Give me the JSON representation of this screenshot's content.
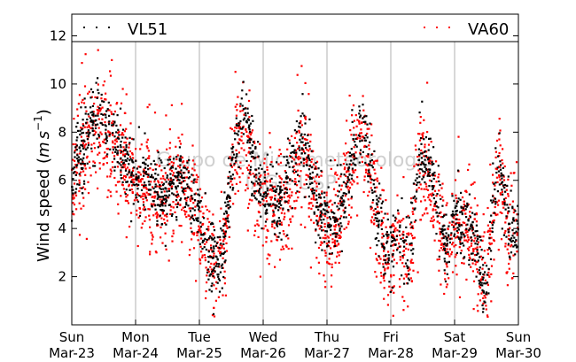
{
  "chart_data": {
    "type": "scatter",
    "title": "",
    "xlabel": "",
    "ylabel": "Wind speed (m s⁻¹)",
    "ylabel_main": "Wind speed (",
    "ylabel_unit_m": "m",
    "ylabel_unit_s": "s",
    "ylabel_unit_exp": "−1",
    "ylabel_close": ")",
    "ylim": [
      0,
      12.9
    ],
    "xlim": [
      0,
      7
    ],
    "grid": "vertical",
    "legend_placement": "top",
    "x_ticks": [
      {
        "day": "Sun",
        "date": "Mar-23"
      },
      {
        "day": "Mon",
        "date": "Mar-24"
      },
      {
        "day": "Tue",
        "date": "Mar-25"
      },
      {
        "day": "Wed",
        "date": "Mar-26"
      },
      {
        "day": "Thu",
        "date": "Mar-27"
      },
      {
        "day": "Fri",
        "date": "Mar-28"
      },
      {
        "day": "Sat",
        "date": "Mar-29"
      },
      {
        "day": "Sun",
        "date": "Mar-30"
      }
    ],
    "y_ticks": [
      2,
      4,
      6,
      8,
      10,
      12
    ],
    "watermark_line1": "Grupo de Micrometeorologia",
    "watermark_line2": "IAG - USP",
    "series": [
      {
        "name": "VL51",
        "color": "#000000",
        "profile": [
          [
            0.0,
            6.2
          ],
          [
            0.1,
            7.0
          ],
          [
            0.2,
            7.5
          ],
          [
            0.3,
            8.2
          ],
          [
            0.4,
            8.8
          ],
          [
            0.5,
            8.4
          ],
          [
            0.6,
            8.0
          ],
          [
            0.7,
            7.8
          ],
          [
            0.8,
            7.2
          ],
          [
            0.9,
            6.5
          ],
          [
            1.0,
            6.0
          ],
          [
            1.1,
            5.8
          ],
          [
            1.2,
            6.0
          ],
          [
            1.3,
            5.7
          ],
          [
            1.4,
            5.5
          ],
          [
            1.5,
            5.7
          ],
          [
            1.6,
            6.0
          ],
          [
            1.7,
            6.2
          ],
          [
            1.8,
            5.8
          ],
          [
            1.9,
            5.0
          ],
          [
            2.0,
            4.5
          ],
          [
            2.1,
            3.5
          ],
          [
            2.2,
            2.8
          ],
          [
            2.3,
            2.6
          ],
          [
            2.4,
            3.8
          ],
          [
            2.5,
            6.5
          ],
          [
            2.6,
            8.2
          ],
          [
            2.7,
            8.6
          ],
          [
            2.8,
            7.5
          ],
          [
            2.9,
            5.8
          ],
          [
            3.0,
            5.2
          ],
          [
            3.1,
            5.2
          ],
          [
            3.2,
            5.0
          ],
          [
            3.3,
            5.2
          ],
          [
            3.4,
            6.0
          ],
          [
            3.5,
            7.2
          ],
          [
            3.6,
            7.5
          ],
          [
            3.7,
            7.0
          ],
          [
            3.8,
            5.2
          ],
          [
            3.9,
            4.6
          ],
          [
            4.0,
            4.3
          ],
          [
            4.1,
            4.5
          ],
          [
            4.2,
            4.8
          ],
          [
            4.3,
            5.5
          ],
          [
            4.4,
            7.2
          ],
          [
            4.5,
            8.3
          ],
          [
            4.6,
            7.8
          ],
          [
            4.7,
            6.2
          ],
          [
            4.8,
            4.5
          ],
          [
            4.9,
            3.2
          ],
          [
            5.0,
            3.0
          ],
          [
            5.1,
            3.8
          ],
          [
            5.2,
            3.2
          ],
          [
            5.3,
            3.0
          ],
          [
            5.4,
            6.0
          ],
          [
            5.5,
            7.2
          ],
          [
            5.6,
            6.5
          ],
          [
            5.7,
            5.5
          ],
          [
            5.8,
            3.6
          ],
          [
            5.9,
            3.4
          ],
          [
            6.0,
            4.5
          ],
          [
            6.1,
            4.0
          ],
          [
            6.2,
            4.5
          ],
          [
            6.3,
            4.2
          ],
          [
            6.4,
            2.2
          ],
          [
            6.5,
            1.4
          ],
          [
            6.6,
            5.0
          ],
          [
            6.7,
            6.8
          ],
          [
            6.8,
            4.8
          ],
          [
            6.9,
            3.8
          ],
          [
            7.0,
            4.2
          ]
        ],
        "spread": 0.9,
        "count": 1700
      },
      {
        "name": "VA60",
        "color": "#ff0000",
        "profile": [
          [
            0.0,
            5.6
          ],
          [
            0.1,
            6.6
          ],
          [
            0.2,
            7.2
          ],
          [
            0.3,
            7.8
          ],
          [
            0.4,
            8.4
          ],
          [
            0.5,
            8.0
          ],
          [
            0.6,
            7.6
          ],
          [
            0.7,
            7.4
          ],
          [
            0.8,
            6.8
          ],
          [
            0.9,
            6.2
          ],
          [
            1.0,
            5.8
          ],
          [
            1.1,
            5.5
          ],
          [
            1.2,
            5.6
          ],
          [
            1.3,
            5.4
          ],
          [
            1.4,
            5.3
          ],
          [
            1.5,
            5.4
          ],
          [
            1.6,
            5.7
          ],
          [
            1.7,
            5.9
          ],
          [
            1.8,
            5.5
          ],
          [
            1.9,
            4.8
          ],
          [
            2.0,
            4.2
          ],
          [
            2.1,
            3.2
          ],
          [
            2.2,
            2.6
          ],
          [
            2.3,
            2.4
          ],
          [
            2.4,
            3.6
          ],
          [
            2.5,
            6.2
          ],
          [
            2.6,
            7.9
          ],
          [
            2.7,
            8.2
          ],
          [
            2.8,
            7.2
          ],
          [
            2.9,
            5.5
          ],
          [
            3.0,
            4.9
          ],
          [
            3.1,
            4.9
          ],
          [
            3.2,
            4.7
          ],
          [
            3.3,
            4.9
          ],
          [
            3.4,
            5.7
          ],
          [
            3.5,
            6.9
          ],
          [
            3.6,
            7.2
          ],
          [
            3.7,
            6.7
          ],
          [
            3.8,
            4.9
          ],
          [
            3.9,
            4.3
          ],
          [
            4.0,
            4.0
          ],
          [
            4.1,
            4.2
          ],
          [
            4.2,
            4.5
          ],
          [
            4.3,
            5.2
          ],
          [
            4.4,
            6.9
          ],
          [
            4.5,
            8.0
          ],
          [
            4.6,
            7.5
          ],
          [
            4.7,
            5.9
          ],
          [
            4.8,
            4.2
          ],
          [
            4.9,
            2.9
          ],
          [
            5.0,
            2.7
          ],
          [
            5.1,
            3.5
          ],
          [
            5.2,
            2.9
          ],
          [
            5.3,
            2.7
          ],
          [
            5.4,
            5.7
          ],
          [
            5.5,
            6.9
          ],
          [
            5.6,
            6.2
          ],
          [
            5.7,
            5.2
          ],
          [
            5.8,
            3.3
          ],
          [
            5.9,
            3.1
          ],
          [
            6.0,
            4.2
          ],
          [
            6.1,
            3.7
          ],
          [
            6.2,
            4.2
          ],
          [
            6.3,
            3.9
          ],
          [
            6.4,
            1.9
          ],
          [
            6.5,
            1.1
          ],
          [
            6.6,
            4.7
          ],
          [
            6.7,
            6.5
          ],
          [
            6.8,
            4.5
          ],
          [
            6.9,
            3.5
          ],
          [
            7.0,
            3.9
          ]
        ],
        "spread": 1.5,
        "count": 2100
      }
    ]
  }
}
